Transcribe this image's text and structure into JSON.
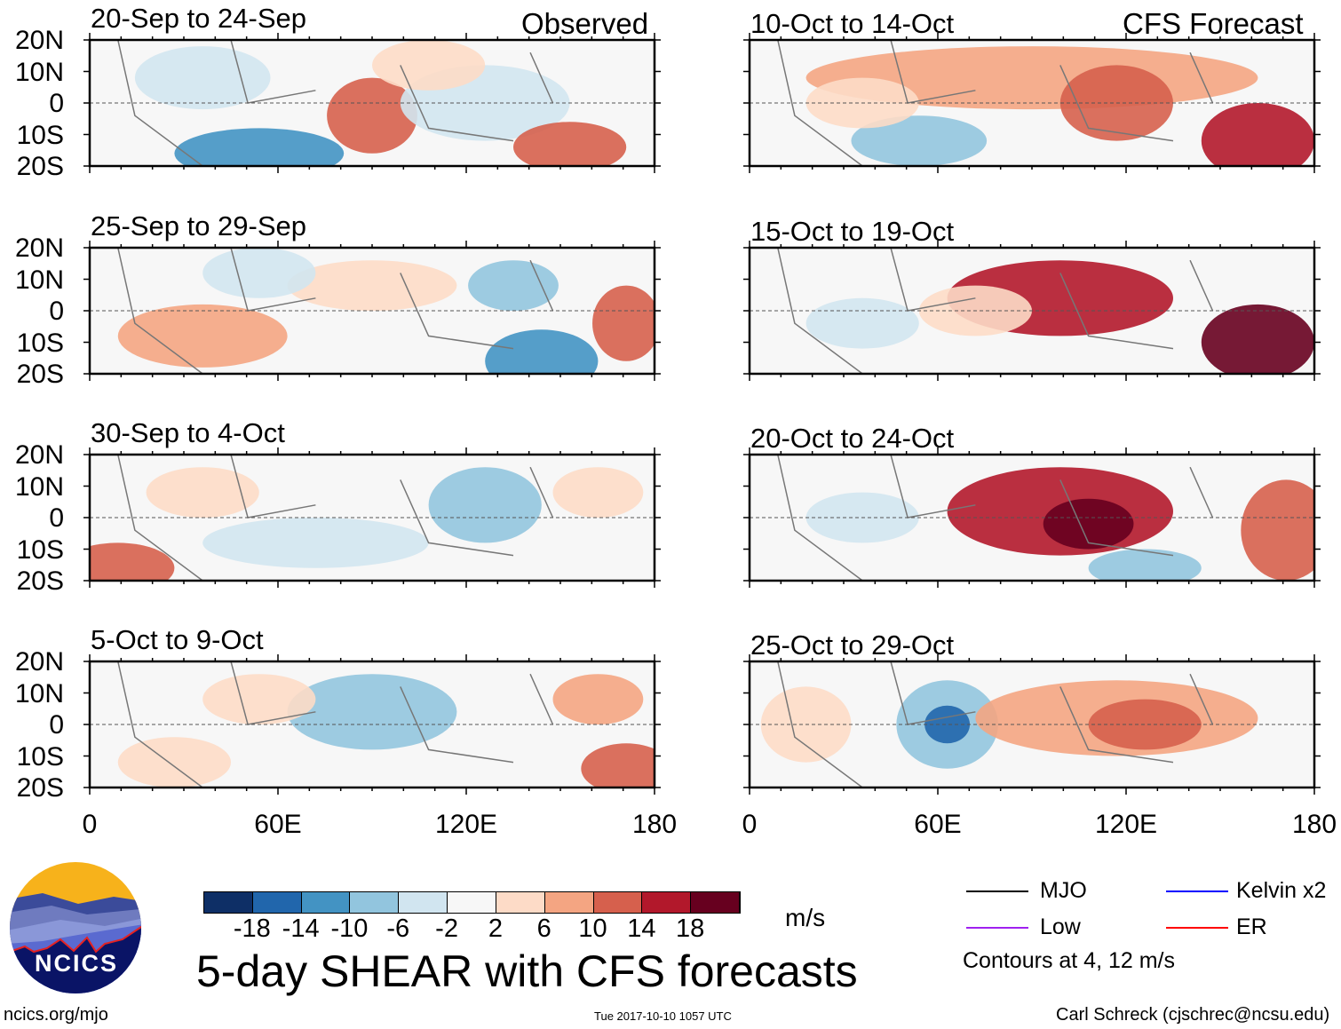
{
  "headers": {
    "left": "Observed",
    "right": "CFS Forecast"
  },
  "panels": [
    {
      "title": "20-Sep to 24-Sep",
      "column": "observed"
    },
    {
      "title": "25-Sep to 29-Sep",
      "column": "observed"
    },
    {
      "title": "30-Sep to 4-Oct",
      "column": "observed"
    },
    {
      "title": "5-Oct to 9-Oct",
      "column": "observed"
    },
    {
      "title": "10-Oct to 14-Oct",
      "column": "forecast"
    },
    {
      "title": "15-Oct to 19-Oct",
      "column": "forecast"
    },
    {
      "title": "20-Oct to 24-Oct",
      "column": "forecast"
    },
    {
      "title": "25-Oct to 29-Oct",
      "column": "forecast"
    }
  ],
  "y_ticks": [
    "20N",
    "10N",
    "0",
    "10S",
    "20S"
  ],
  "x_ticks": [
    "0",
    "60E",
    "120E",
    "180"
  ],
  "colorbar": {
    "labels": [
      "-18",
      "-14",
      "-10",
      "-6",
      "-2",
      "2",
      "6",
      "10",
      "14",
      "18"
    ],
    "colors": [
      "#0e2f66",
      "#2166ac",
      "#4393c3",
      "#92c5de",
      "#d1e5f0",
      "#f7f7f7",
      "#fddbc7",
      "#f4a582",
      "#d6604d",
      "#b2182b",
      "#67001f"
    ],
    "units": "m/s"
  },
  "legend": {
    "items": [
      {
        "label": "MJO",
        "color": "#000000"
      },
      {
        "label": "Kelvin x2",
        "color": "#0000ff"
      },
      {
        "label": "Low",
        "color": "#a020f0"
      },
      {
        "label": "ER",
        "color": "#ff0000"
      }
    ],
    "note": "Contours at 4, 12 m/s"
  },
  "title": "5-day SHEAR with CFS forecasts",
  "logo_text": "NCICS",
  "footer": {
    "url": "ncics.org/mjo",
    "timestamp": "Tue 2017-10-10 1057 UTC",
    "credit": "Carl Schreck (cjschrec@ncsu.edu)"
  }
}
